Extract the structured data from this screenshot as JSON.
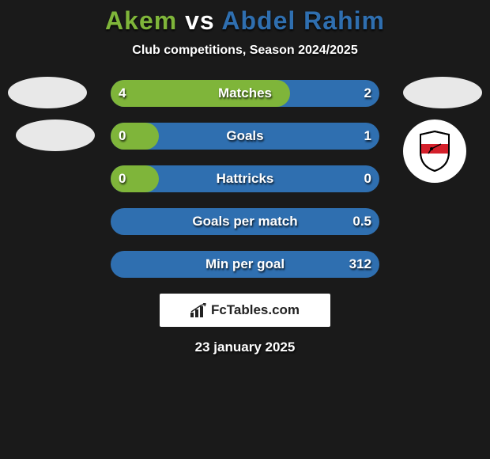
{
  "title": {
    "player1": "Akem",
    "vs": " vs ",
    "player2": "Abdel Rahim",
    "color1": "#7fb53a",
    "color2": "#2f6fb0"
  },
  "subtitle": "Club competitions, Season 2024/2025",
  "track_color": "#2f6fb0",
  "fill_color": "#7fb53a",
  "rows": [
    {
      "label": "Matches",
      "left": "4",
      "right": "2",
      "fill_pct": 66.7
    },
    {
      "label": "Goals",
      "left": "0",
      "right": "1",
      "fill_pct": 18
    },
    {
      "label": "Hattricks",
      "left": "0",
      "right": "0",
      "fill_pct": 18
    },
    {
      "label": "Goals per match",
      "left": "",
      "right": "0.5",
      "fill_pct": 0
    },
    {
      "label": "Min per goal",
      "left": "",
      "right": "312",
      "fill_pct": 0
    }
  ],
  "brand": "FcTables.com",
  "date": "23 january 2025",
  "club_right_shield": {
    "border": "#000000",
    "fill": "#ffffff",
    "stripe": "#d4202b"
  }
}
